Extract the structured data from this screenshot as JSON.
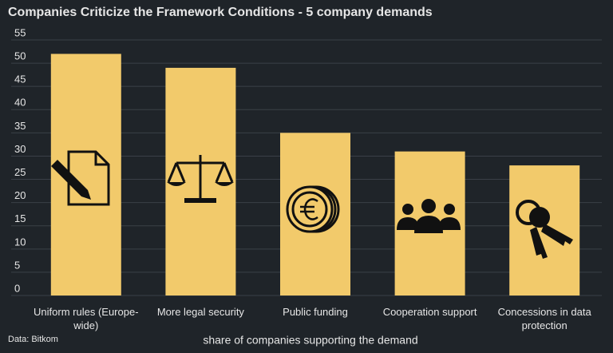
{
  "chart_data": {
    "type": "bar",
    "title": "Companies Criticize the Framework Conditions - 5 company demands",
    "x_label": "share of companies supporting the demand",
    "source": "Data: Bitkom",
    "categories": [
      "Uniform rules (Europe-wide)",
      "More legal security",
      "Public funding",
      "Cooperation support",
      "Concessions in data protection"
    ],
    "values": [
      52,
      49,
      35,
      31,
      28
    ],
    "color": "#f2ca6b",
    "ylim": [
      0,
      55
    ],
    "yticks": [
      0,
      5,
      10,
      15,
      20,
      25,
      30,
      35,
      40,
      45,
      50,
      55
    ],
    "grid": true
  }
}
